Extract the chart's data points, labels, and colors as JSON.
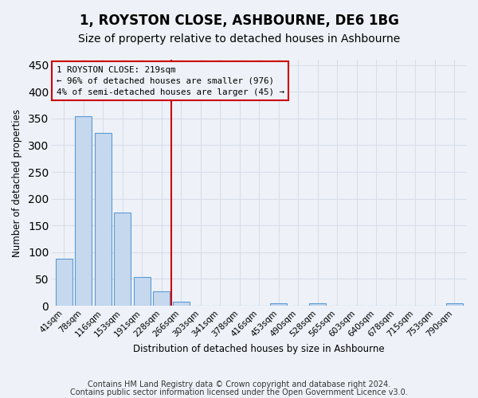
{
  "title": "1, ROYSTON CLOSE, ASHBOURNE, DE6 1BG",
  "subtitle": "Size of property relative to detached houses in Ashbourne",
  "xlabel": "Distribution of detached houses by size in Ashbourne",
  "ylabel": "Number of detached properties",
  "categories": [
    "41sqm",
    "78sqm",
    "116sqm",
    "153sqm",
    "191sqm",
    "228sqm",
    "266sqm",
    "303sqm",
    "341sqm",
    "378sqm",
    "416sqm",
    "453sqm",
    "490sqm",
    "528sqm",
    "565sqm",
    "603sqm",
    "640sqm",
    "678sqm",
    "715sqm",
    "753sqm",
    "790sqm"
  ],
  "values": [
    88,
    354,
    323,
    174,
    53,
    27,
    8,
    0,
    0,
    0,
    0,
    4,
    0,
    5,
    0,
    0,
    0,
    0,
    0,
    0,
    4
  ],
  "bar_color": "#c5d8ee",
  "bar_edge_color": "#5b9bd5",
  "property_line_x": 5.5,
  "property_line_color": "#cc0000",
  "annotation_line1": "1 ROYSTON CLOSE: 219sqm",
  "annotation_line2": "← 96% of detached houses are smaller (976)",
  "annotation_line3": "4% of semi-detached houses are larger (45) →",
  "annotation_box_color": "#cc0000",
  "ylim": [
    0,
    460
  ],
  "background_color": "#eef2f8",
  "grid_color": "#d8dde8",
  "footer_line1": "Contains HM Land Registry data © Crown copyright and database right 2024.",
  "footer_line2": "Contains public sector information licensed under the Open Government Licence v3.0.",
  "title_fontsize": 12,
  "subtitle_fontsize": 10,
  "footer_fontsize": 7
}
